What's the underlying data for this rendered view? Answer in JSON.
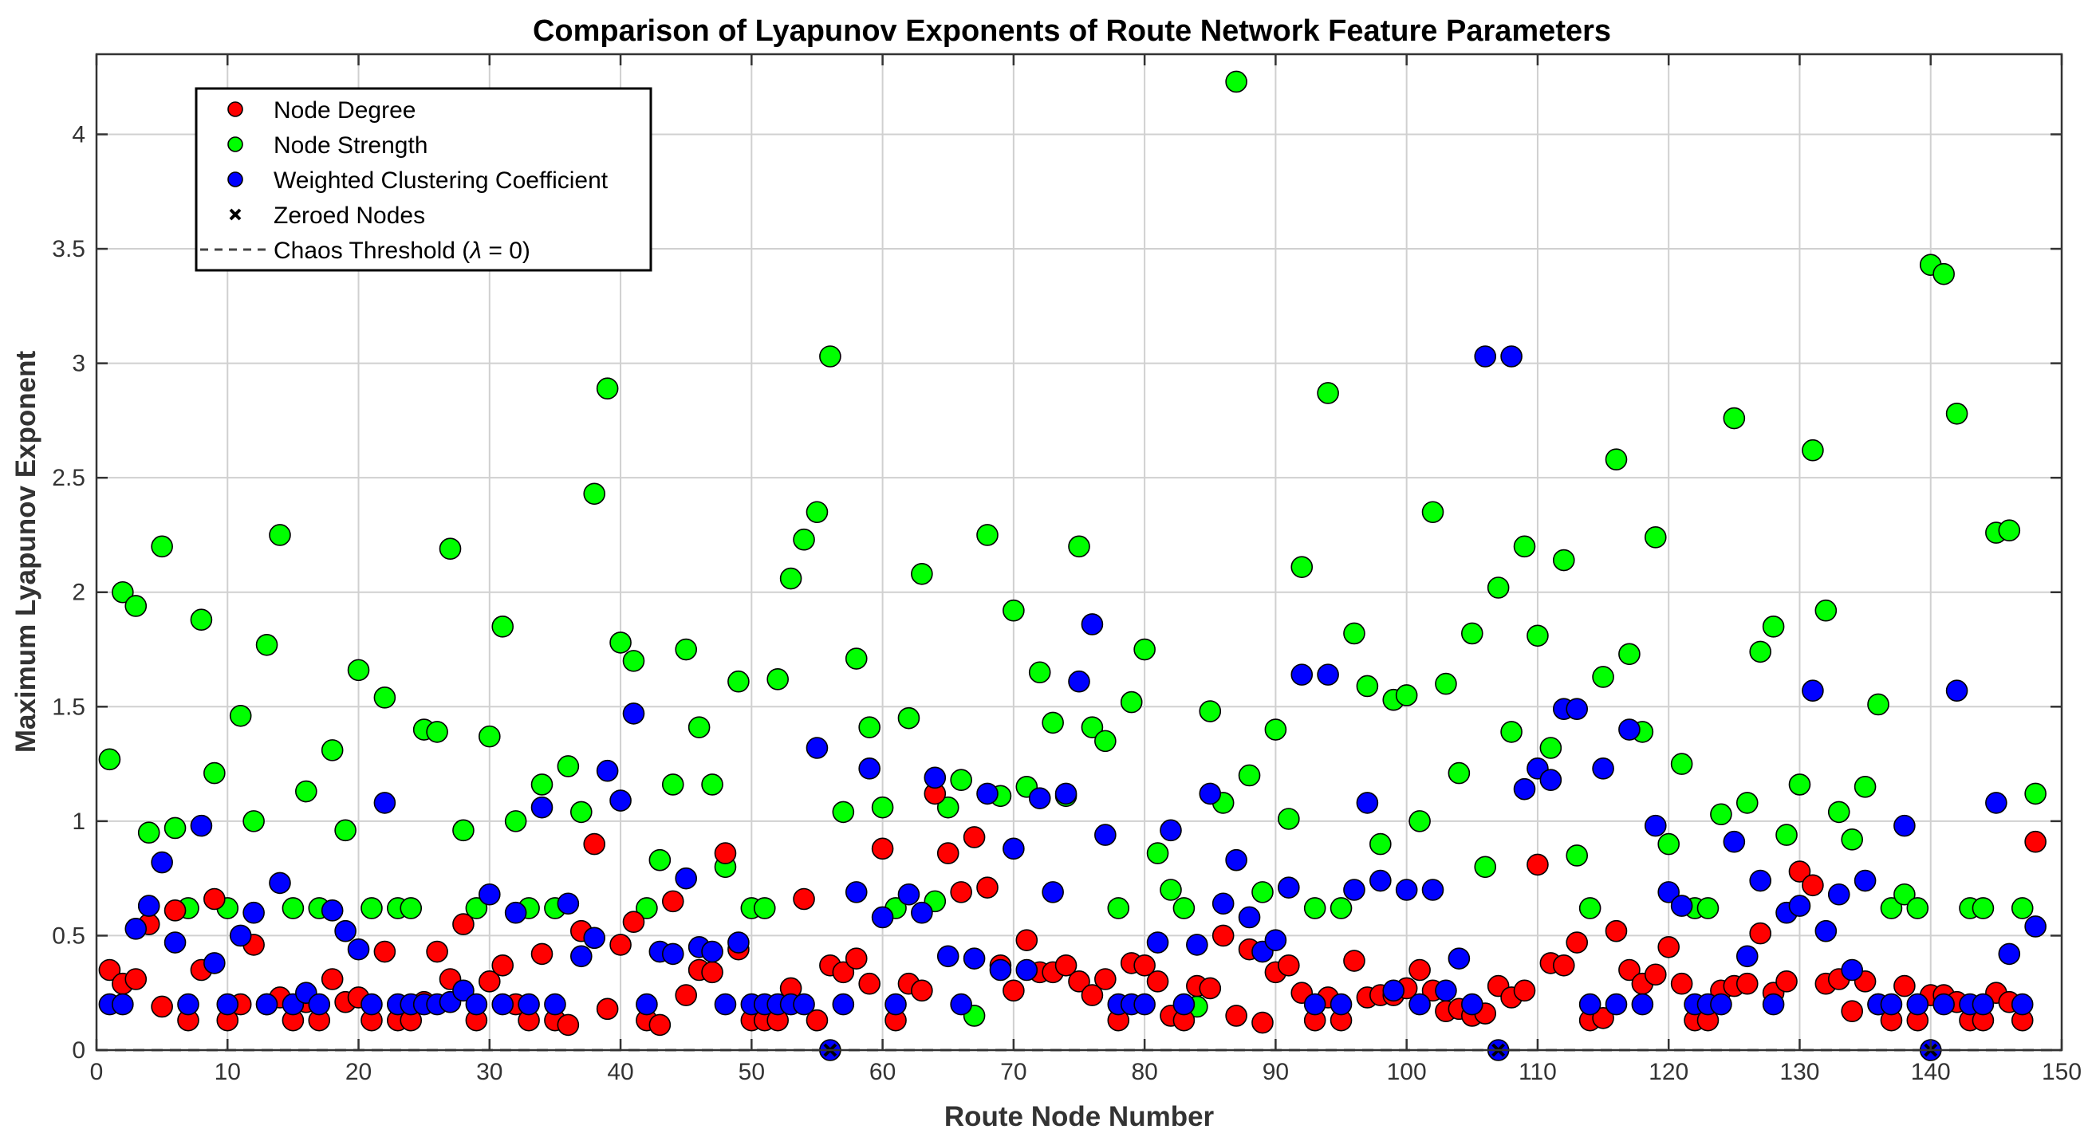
{
  "chart_data": {
    "type": "scatter",
    "title": "Comparison of Lyapunov Exponents of Route Network Feature Parameters",
    "xlabel": "Route Node Number",
    "ylabel": "Maximum Lyapunov Exponent",
    "xlim": [
      0,
      150
    ],
    "ylim": [
      0,
      4.35
    ],
    "xticks": [
      0,
      10,
      20,
      30,
      40,
      50,
      60,
      70,
      80,
      90,
      100,
      110,
      120,
      130,
      140,
      150
    ],
    "yticks": [
      0,
      0.5,
      1,
      1.5,
      2,
      2.5,
      3,
      3.5,
      4
    ],
    "xtick_labels": [
      "0",
      "10",
      "20",
      "30",
      "40",
      "50",
      "60",
      "70",
      "80",
      "90",
      "100",
      "110",
      "120",
      "130",
      "140",
      "150"
    ],
    "ytick_labels": [
      "0",
      "0.5",
      "1",
      "1.5",
      "2",
      "2.5",
      "3",
      "3.5",
      "4"
    ],
    "grid": true,
    "legend_position": "top-left",
    "legend": {
      "node_degree": "Node Degree",
      "node_strength": "Node Strength",
      "wcc": "Weighted Clustering Coefficient",
      "zeroed": "Zeroed Nodes",
      "threshold_prefix": "Chaos Threshold (",
      "threshold_symbol": "λ",
      "threshold_suffix": " = 0)"
    },
    "colors": {
      "node_degree": "#ff0000",
      "node_strength": "#00ff00",
      "wcc": "#0000ff",
      "zeroed": "#000000",
      "threshold": "#444444"
    },
    "x": [
      1,
      2,
      3,
      4,
      5,
      6,
      7,
      8,
      9,
      10,
      11,
      12,
      13,
      14,
      15,
      16,
      17,
      18,
      19,
      20,
      21,
      22,
      23,
      24,
      25,
      26,
      27,
      28,
      29,
      30,
      31,
      32,
      33,
      34,
      35,
      36,
      37,
      38,
      39,
      40,
      41,
      42,
      43,
      44,
      45,
      46,
      47,
      48,
      49,
      50,
      51,
      52,
      53,
      54,
      55,
      56,
      57,
      58,
      59,
      60,
      61,
      62,
      63,
      64,
      65,
      66,
      67,
      68,
      69,
      70,
      71,
      72,
      73,
      74,
      75,
      76,
      77,
      78,
      79,
      80,
      81,
      82,
      83,
      84,
      85,
      86,
      87,
      88,
      89,
      90,
      91,
      92,
      93,
      94,
      95,
      96,
      97,
      98,
      99,
      100,
      101,
      102,
      103,
      104,
      105,
      106,
      107,
      108,
      109,
      110,
      111,
      112,
      113,
      114,
      115,
      116,
      117,
      118,
      119,
      120,
      121,
      122,
      123,
      124,
      125,
      126,
      127,
      128,
      129,
      130,
      131,
      132,
      133,
      134,
      135,
      136,
      137,
      138,
      139,
      140,
      141,
      142,
      143,
      144,
      145,
      146,
      147,
      148
    ],
    "series": [
      {
        "name": "Node Strength",
        "values": [
          1.27,
          2.0,
          1.94,
          0.95,
          2.2,
          0.97,
          0.62,
          1.88,
          1.21,
          0.62,
          1.46,
          1.0,
          1.77,
          2.25,
          0.62,
          1.13,
          0.62,
          1.31,
          0.96,
          1.66,
          0.62,
          1.54,
          0.62,
          0.62,
          1.4,
          1.39,
          2.19,
          0.96,
          0.62,
          1.37,
          1.85,
          1.0,
          0.62,
          1.16,
          0.62,
          1.24,
          1.04,
          2.43,
          2.89,
          1.78,
          1.7,
          0.62,
          0.83,
          1.16,
          1.75,
          1.41,
          1.16,
          0.8,
          1.61,
          0.62,
          0.62,
          1.62,
          2.06,
          2.23,
          2.35,
          3.03,
          1.04,
          1.71,
          1.41,
          1.06,
          0.62,
          1.45,
          2.08,
          0.65,
          1.06,
          1.18,
          0.15,
          2.25,
          1.11,
          1.92,
          1.15,
          1.65,
          1.43,
          1.11,
          2.2,
          1.41,
          1.35,
          0.62,
          1.52,
          1.75,
          0.86,
          0.7,
          0.62,
          0.19,
          1.48,
          1.08,
          4.23,
          1.2,
          0.69,
          1.4,
          1.01,
          2.11,
          0.62,
          2.87,
          0.62,
          1.82,
          1.59,
          0.9,
          1.53,
          1.55,
          1.0,
          2.35,
          1.6,
          1.21,
          1.82,
          0.8,
          2.02,
          1.39,
          2.2,
          1.81,
          1.32,
          2.14,
          0.85,
          0.62,
          1.63,
          2.58,
          1.73,
          1.39,
          2.24,
          0.9,
          1.25,
          0.62,
          0.62,
          1.03,
          2.76,
          1.08,
          1.74,
          1.85,
          0.94,
          1.16,
          2.62,
          1.92,
          1.04,
          0.92,
          1.15,
          1.51,
          0.62,
          0.68,
          0.62,
          3.43,
          3.39,
          2.78,
          0.62,
          0.62,
          2.26,
          2.27,
          0.62,
          1.12
        ]
      },
      {
        "name": "Node Degree",
        "values": [
          0.35,
          0.29,
          0.31,
          0.55,
          0.19,
          0.61,
          0.13,
          0.35,
          0.66,
          0.13,
          0.2,
          0.46,
          0.2,
          0.23,
          0.13,
          0.21,
          0.13,
          0.31,
          0.21,
          0.23,
          0.13,
          0.43,
          0.13,
          0.13,
          0.21,
          0.43,
          0.31,
          0.55,
          0.13,
          0.3,
          0.37,
          0.2,
          0.13,
          0.42,
          0.13,
          0.11,
          0.52,
          0.9,
          0.18,
          0.46,
          0.56,
          0.13,
          0.11,
          0.65,
          0.24,
          0.35,
          0.34,
          0.86,
          0.44,
          0.13,
          0.13,
          0.13,
          0.27,
          0.66,
          0.13,
          0.37,
          0.34,
          0.4,
          0.29,
          0.88,
          0.13,
          0.29,
          0.26,
          1.12,
          0.86,
          0.69,
          0.93,
          0.71,
          0.37,
          0.26,
          0.48,
          0.34,
          0.34,
          0.37,
          0.3,
          0.24,
          0.31,
          0.13,
          0.38,
          0.37,
          0.3,
          0.15,
          0.13,
          0.28,
          0.27,
          0.5,
          0.15,
          0.44,
          0.12,
          0.34,
          0.37,
          0.25,
          0.13,
          0.23,
          0.13,
          0.39,
          0.23,
          0.24,
          0.24,
          0.27,
          0.35,
          0.26,
          0.17,
          0.18,
          0.15,
          0.16,
          0.28,
          0.23,
          0.26,
          0.81,
          0.38,
          0.37,
          0.47,
          0.13,
          0.14,
          0.52,
          0.35,
          0.29,
          0.33,
          0.45,
          0.29,
          0.13,
          0.13,
          0.26,
          0.28,
          0.29,
          0.51,
          0.25,
          0.3,
          0.78,
          0.72,
          0.29,
          0.31,
          0.17,
          0.3,
          0.2,
          0.13,
          0.28,
          0.13,
          0.24,
          0.24,
          0.21,
          0.13,
          0.13,
          0.25,
          0.21,
          0.13,
          0.91
        ]
      },
      {
        "name": "Weighted Clustering Coefficient",
        "values": [
          0.2,
          0.2,
          0.53,
          0.63,
          0.82,
          0.47,
          0.2,
          0.98,
          0.38,
          0.2,
          0.5,
          0.6,
          0.2,
          0.73,
          0.2,
          0.25,
          0.2,
          0.61,
          0.52,
          0.44,
          0.2,
          1.08,
          0.2,
          0.2,
          0.2,
          0.2,
          0.21,
          0.26,
          0.2,
          0.68,
          0.2,
          0.6,
          0.2,
          1.06,
          0.2,
          0.64,
          0.41,
          0.49,
          1.22,
          1.09,
          1.47,
          0.2,
          0.43,
          0.42,
          0.75,
          0.45,
          0.43,
          0.2,
          0.47,
          0.2,
          0.2,
          0.2,
          0.2,
          0.2,
          1.32,
          0.0,
          0.2,
          0.69,
          1.23,
          0.58,
          0.2,
          0.68,
          0.6,
          1.19,
          0.41,
          0.2,
          0.4,
          1.12,
          0.35,
          0.88,
          0.35,
          1.1,
          0.69,
          1.12,
          1.61,
          1.86,
          0.94,
          0.2,
          0.2,
          0.2,
          0.47,
          0.96,
          0.2,
          0.46,
          1.12,
          0.64,
          0.83,
          0.58,
          0.43,
          0.48,
          0.71,
          1.64,
          0.2,
          1.64,
          0.2,
          0.7,
          1.08,
          0.74,
          0.26,
          0.7,
          0.2,
          0.7,
          0.26,
          0.4,
          0.2,
          3.03,
          0.0,
          3.03,
          1.14,
          1.23,
          1.18,
          1.49,
          1.49,
          0.2,
          1.23,
          0.2,
          1.4,
          0.2,
          0.98,
          0.69,
          0.63,
          0.2,
          0.2,
          0.2,
          0.91,
          0.41,
          0.74,
          0.2,
          0.6,
          0.63,
          1.57,
          0.52,
          0.68,
          0.35,
          0.74,
          0.2,
          0.2,
          0.98,
          0.2,
          0.0,
          0.2,
          1.57,
          0.2,
          0.2,
          1.08,
          0.42,
          0.2,
          0.54
        ]
      }
    ],
    "zeroed_nodes": [
      56,
      107,
      140
    ]
  }
}
